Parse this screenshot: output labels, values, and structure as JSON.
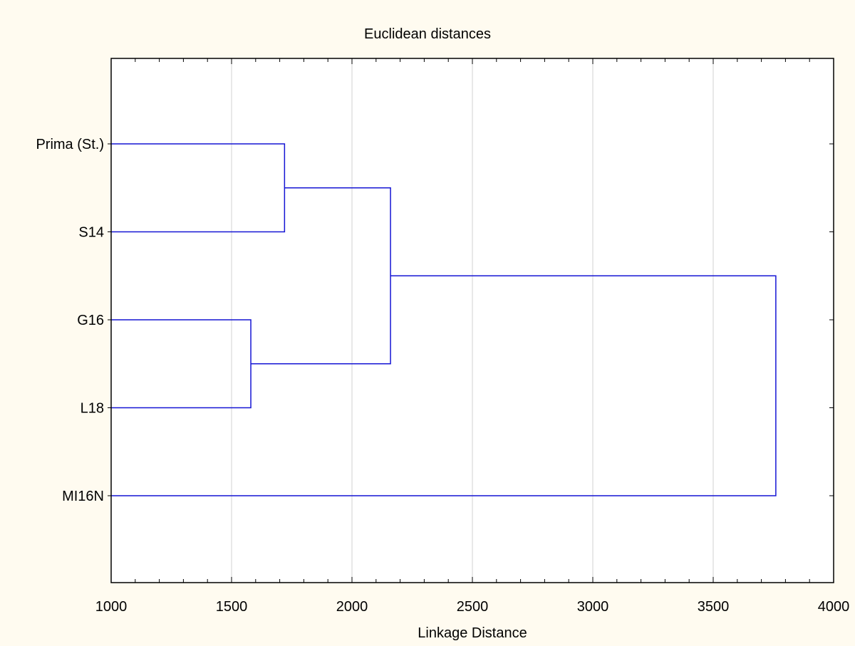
{
  "chart_data": {
    "type": "dendrogram",
    "title": "Euclidean distances",
    "xlabel": "Linkage Distance",
    "xlim": [
      1000,
      4000
    ],
    "x_ticks": [
      1000,
      1500,
      2000,
      2500,
      3000,
      3500,
      4000
    ],
    "x_tick_labels": [
      "1000",
      "1500",
      "2000",
      "2500",
      "3000",
      "3500",
      "4000"
    ],
    "leaves": [
      "Prima (St.)",
      "S14",
      "G16",
      "L18",
      "MI16N"
    ],
    "merges": [
      {
        "left": "G16",
        "right": "L18",
        "distance": 1580
      },
      {
        "left": "Prima (St.)",
        "right": "S14",
        "distance": 1720
      },
      {
        "left": "Prima (St.) + S14",
        "right": "G16 + L18",
        "distance": 2160
      },
      {
        "left": "Prima (St.) + S14 + G16 + L18",
        "right": "MI16N",
        "distance": 3760
      }
    ],
    "grid": true,
    "colors": {
      "line": "#1515d4",
      "grid": "#d0d0d0",
      "frame": "#000000",
      "plot_background": "#ffffff",
      "page_background": "#fffbf0"
    }
  }
}
